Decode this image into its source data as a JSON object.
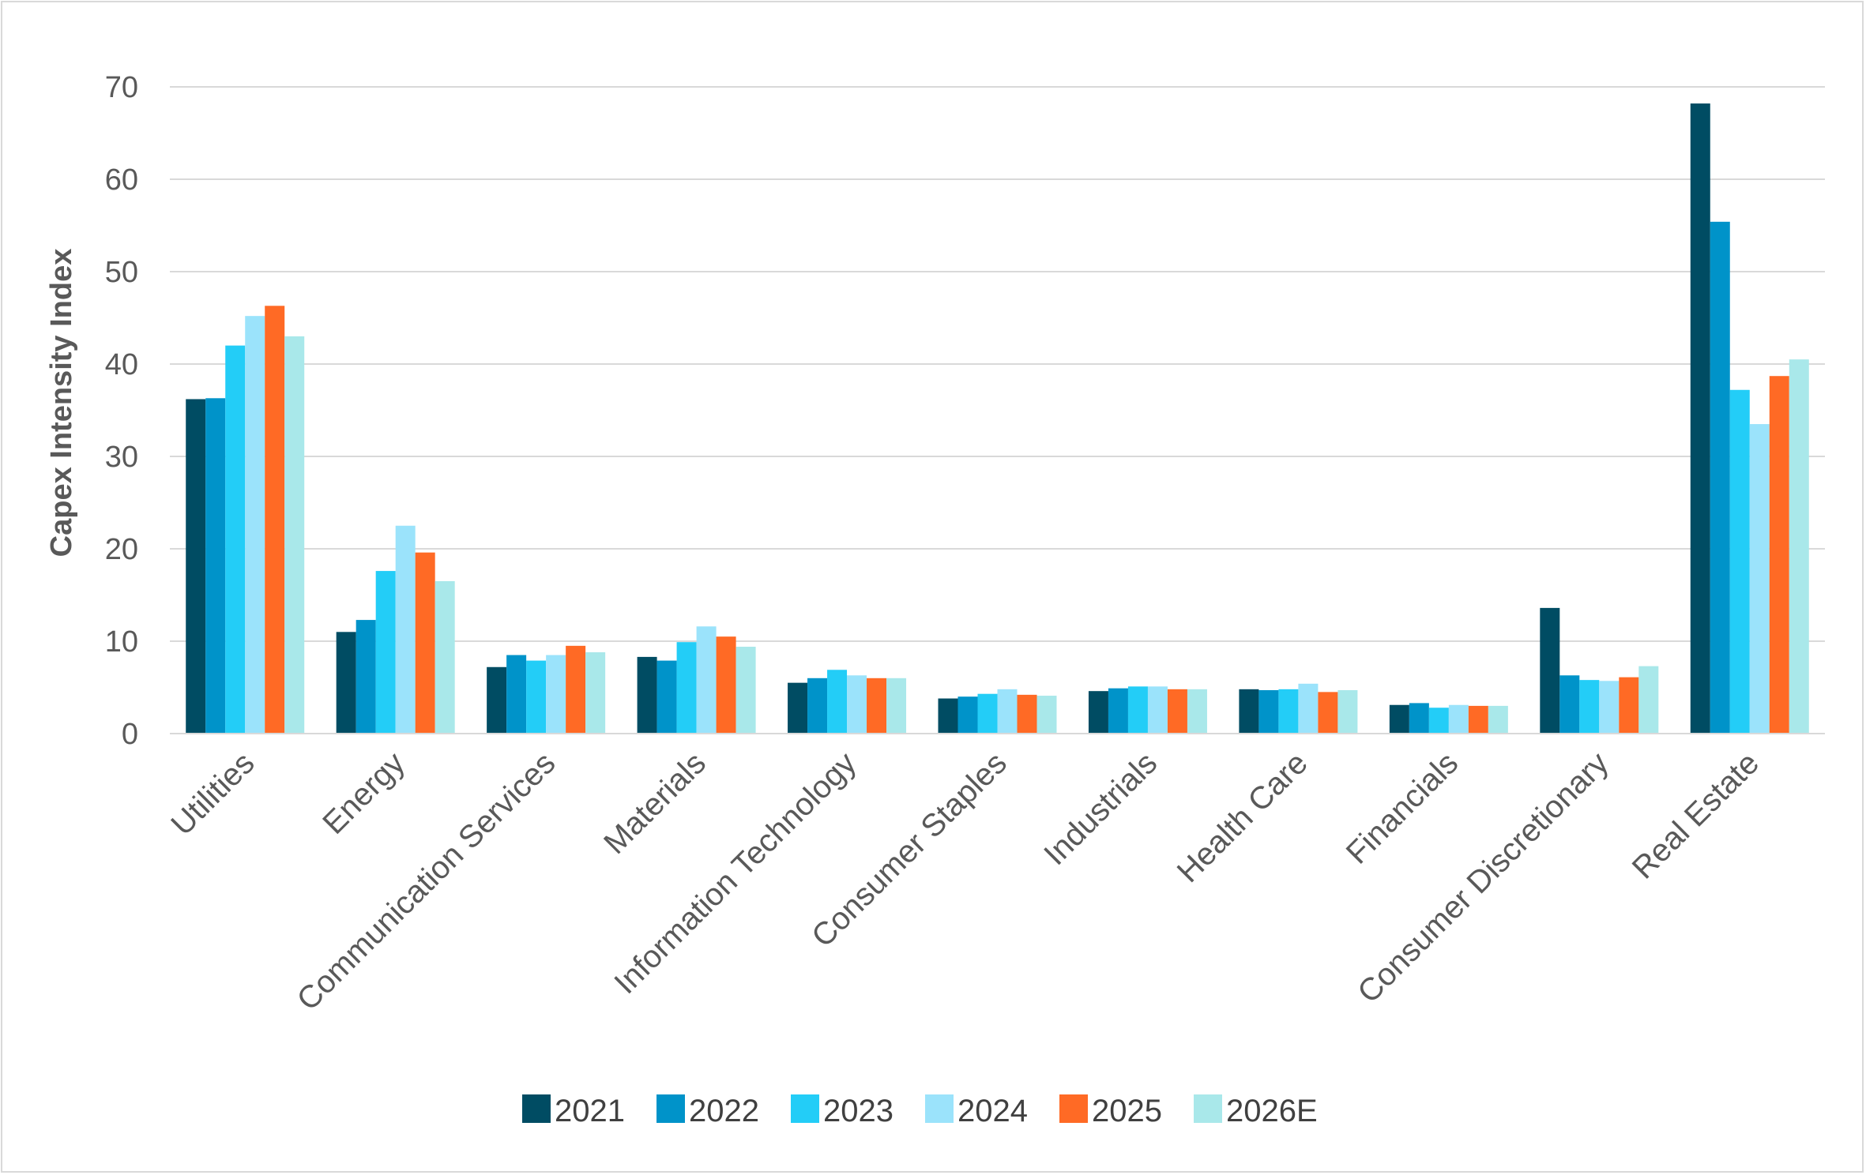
{
  "chart_data": {
    "type": "bar",
    "ylabel": "Capex Intensity Index",
    "xlabel": "",
    "ylim": [
      0,
      70
    ],
    "yticks": [
      "0",
      "10",
      "20",
      "30",
      "40",
      "50",
      "60",
      "70"
    ],
    "grid": true,
    "legend_position": "bottom",
    "categories": [
      "Utilities",
      "Energy",
      "Communication Services",
      "Materials",
      "Information Technology",
      "Consumer Staples",
      "Industrials",
      "Health Care",
      "Financials",
      "Consumer Discretionary",
      "Real Estate"
    ],
    "series": [
      {
        "name": "2021",
        "color": "#004c63",
        "values": [
          36.2,
          11.0,
          7.2,
          8.3,
          5.5,
          3.8,
          4.6,
          4.8,
          3.1,
          13.6,
          68.2
        ]
      },
      {
        "name": "2022",
        "color": "#0093c9",
        "values": [
          36.3,
          12.3,
          8.5,
          7.9,
          6.0,
          4.0,
          4.9,
          4.7,
          3.3,
          6.3,
          55.4
        ]
      },
      {
        "name": "2023",
        "color": "#23cdf7",
        "values": [
          42.0,
          17.6,
          7.9,
          9.9,
          6.9,
          4.3,
          5.1,
          4.8,
          2.8,
          5.8,
          37.2
        ]
      },
      {
        "name": "2024",
        "color": "#9be3fb",
        "values": [
          45.2,
          22.5,
          8.5,
          11.6,
          6.3,
          4.8,
          5.1,
          5.4,
          3.1,
          5.7,
          33.5
        ]
      },
      {
        "name": "2025",
        "color": "#ff6a25",
        "values": [
          46.3,
          19.6,
          9.5,
          10.5,
          6.0,
          4.2,
          4.8,
          4.5,
          3.0,
          6.1,
          38.7
        ]
      },
      {
        "name": "2026E",
        "color": "#a9e8ea",
        "values": [
          43.0,
          16.5,
          8.8,
          9.4,
          6.0,
          4.1,
          4.8,
          4.7,
          3.0,
          7.3,
          40.5
        ]
      }
    ]
  }
}
